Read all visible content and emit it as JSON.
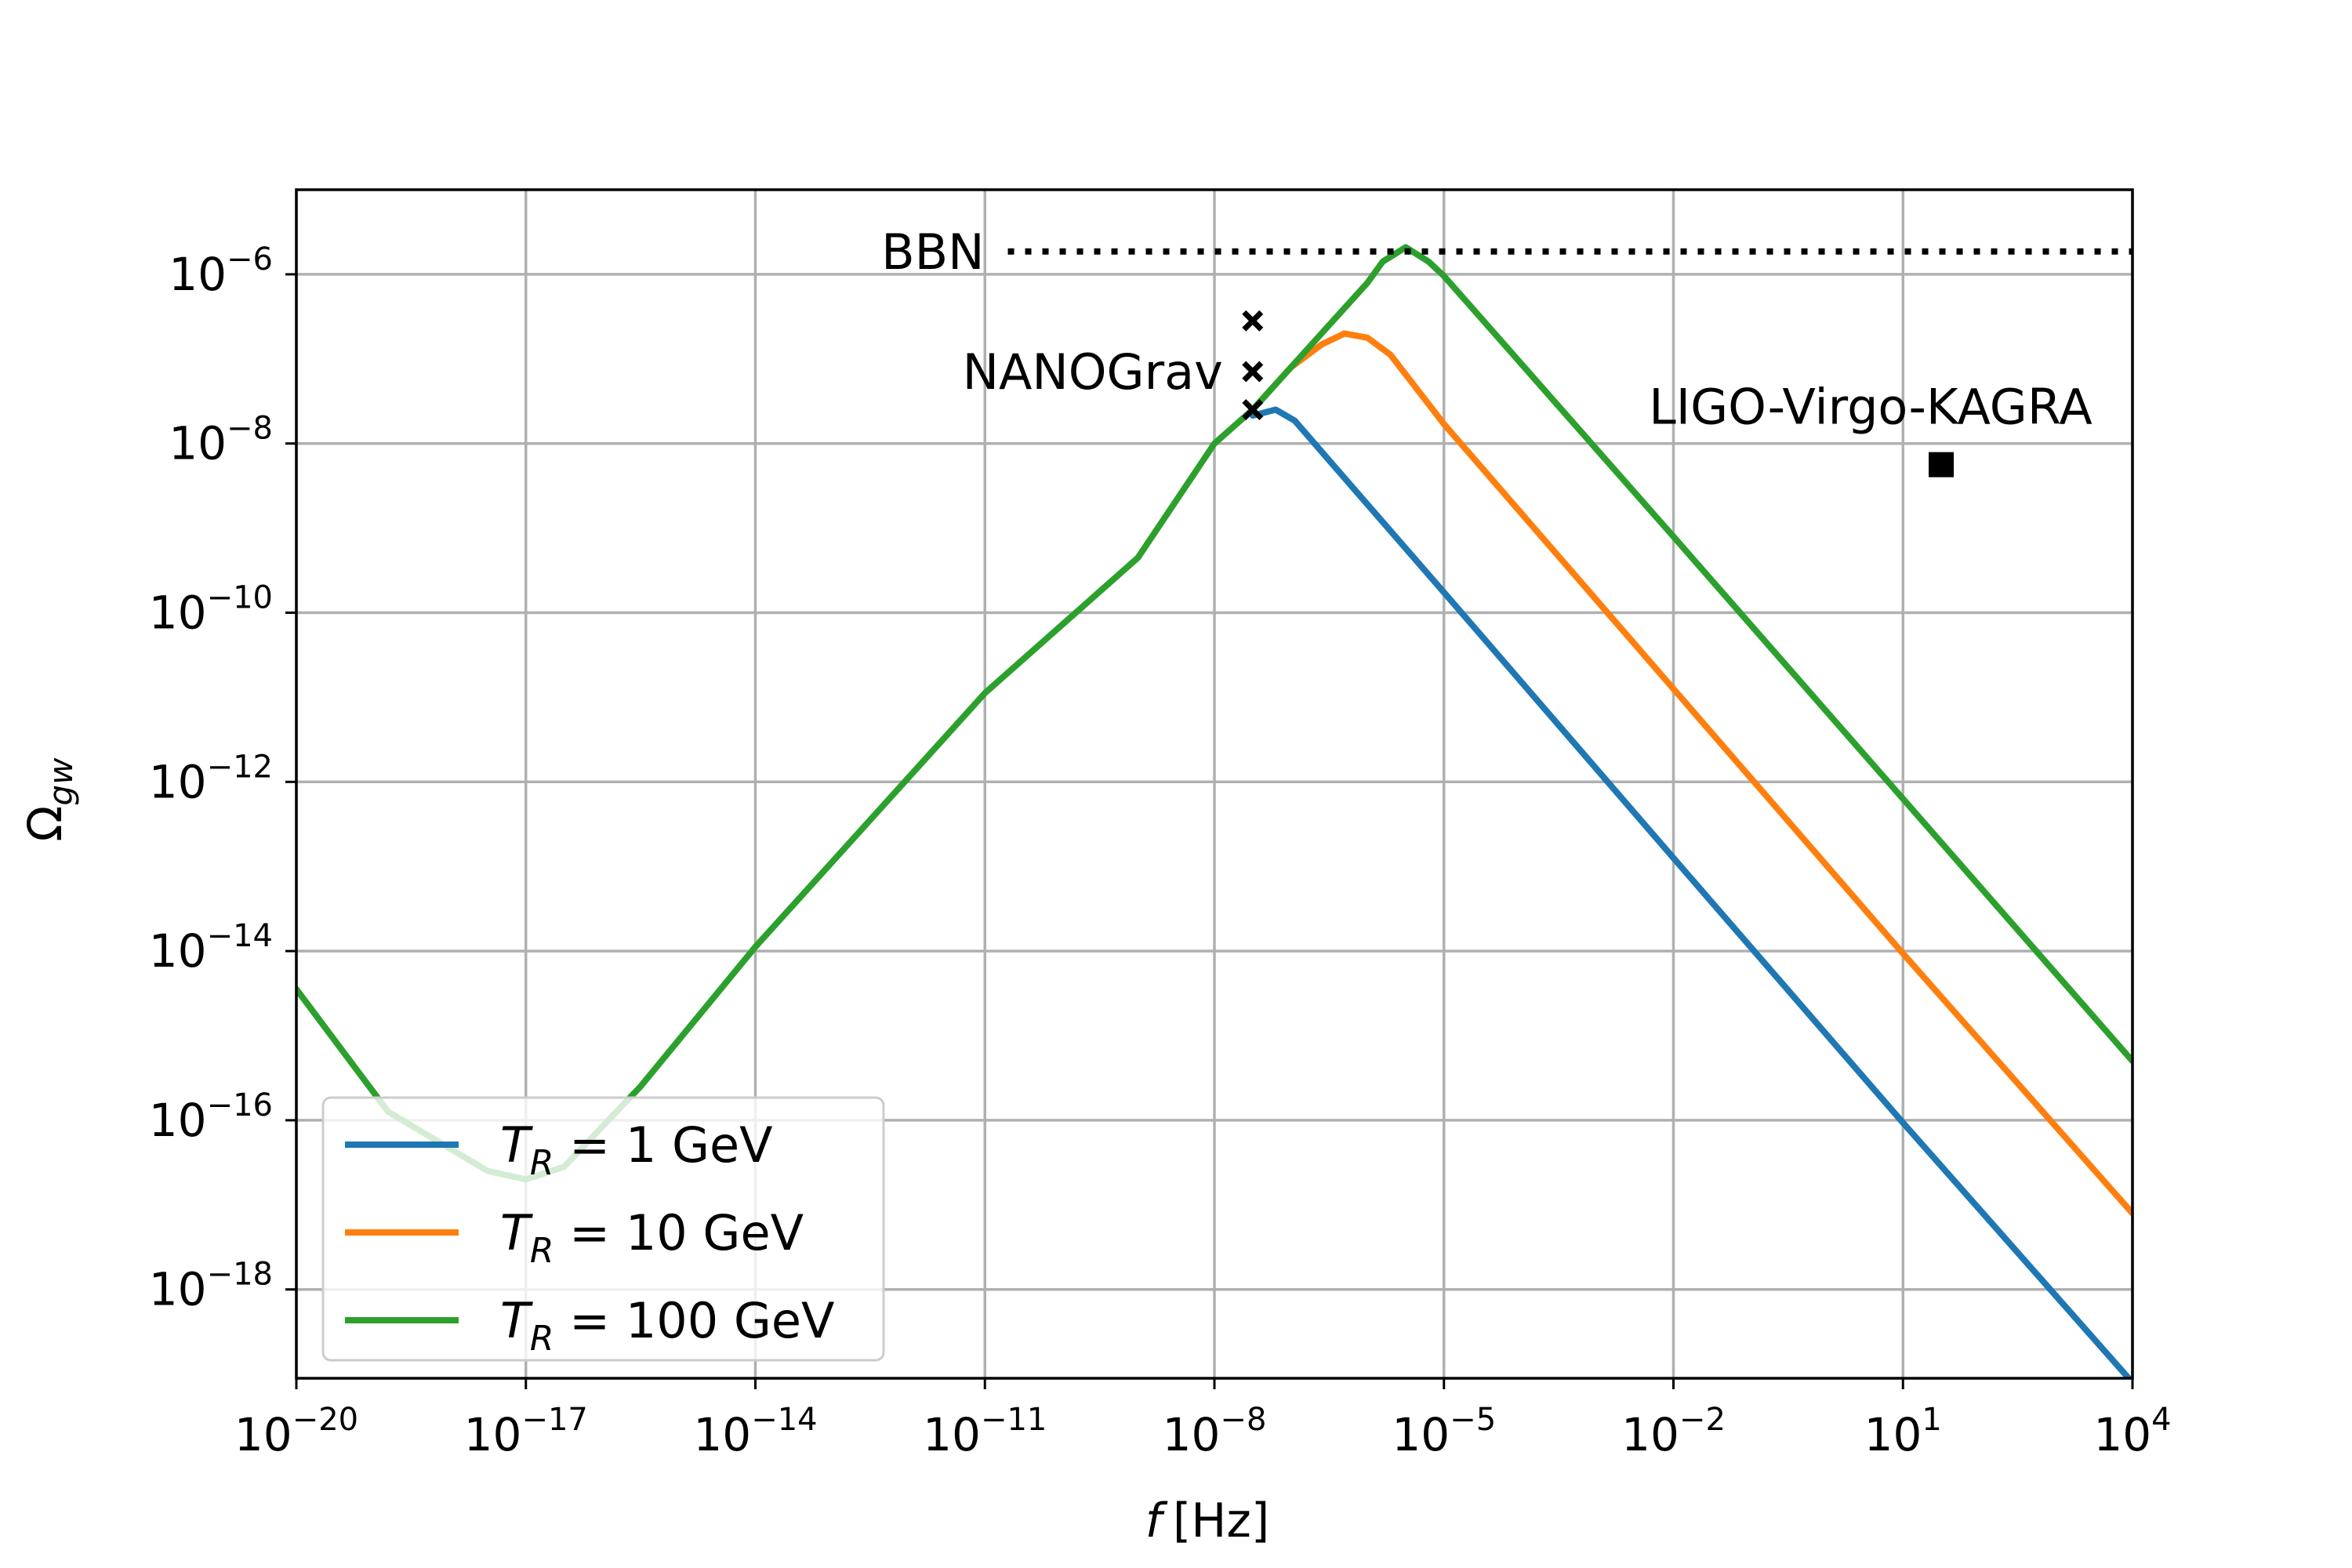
{
  "chart_data": {
    "type": "line",
    "title": "",
    "xlabel": {
      "var": "f",
      "unit": "[Hz]"
    },
    "ylabel": {
      "base": "Ω",
      "sub": "gw"
    },
    "xscale": "log",
    "yscale": "log",
    "xlim_log10": [
      -20,
      4
    ],
    "ylim_log10": [
      -19.05,
      -5.0
    ],
    "grid": true,
    "xticks": [
      {
        "base": "10",
        "exp": "−20",
        "log10": -20
      },
      {
        "base": "10",
        "exp": "−17",
        "log10": -17
      },
      {
        "base": "10",
        "exp": "−14",
        "log10": -14
      },
      {
        "base": "10",
        "exp": "−11",
        "log10": -11
      },
      {
        "base": "10",
        "exp": "−8",
        "log10": -8
      },
      {
        "base": "10",
        "exp": "−5",
        "log10": -5
      },
      {
        "base": "10",
        "exp": "−2",
        "log10": -2
      },
      {
        "base": "10",
        "exp": "1",
        "log10": 1
      },
      {
        "base": "10",
        "exp": "4",
        "log10": 4
      }
    ],
    "yticks": [
      {
        "base": "10",
        "exp": "−6",
        "log10": -6
      },
      {
        "base": "10",
        "exp": "−8",
        "log10": -8
      },
      {
        "base": "10",
        "exp": "−10",
        "log10": -10
      },
      {
        "base": "10",
        "exp": "−12",
        "log10": -12
      },
      {
        "base": "10",
        "exp": "−14",
        "log10": -14
      },
      {
        "base": "10",
        "exp": "−16",
        "log10": -16
      },
      {
        "base": "10",
        "exp": "−18",
        "log10": -18
      }
    ],
    "series": [
      {
        "name": "T_R = 1 GeV",
        "label": {
          "var": "T",
          "sub": "R",
          "rest": " = 1 GeV"
        },
        "color": "#1f77b4",
        "points_log10": [
          [
            -7.5,
            -7.67
          ],
          [
            -7.2,
            -7.6
          ],
          [
            -6.95,
            -7.73
          ],
          [
            -6.5,
            -8.2
          ],
          [
            -5,
            -9.76
          ],
          [
            -2,
            -12.9
          ],
          [
            1,
            -16.03
          ],
          [
            4,
            -19.1
          ]
        ]
      },
      {
        "name": "T_R = 10 GeV",
        "label": {
          "var": "T",
          "sub": "R",
          "rest": " = 10 GeV"
        },
        "color": "#ff7f0e",
        "points_log10": [
          [
            -7.5,
            -7.6
          ],
          [
            -7.0,
            -7.1
          ],
          [
            -6.6,
            -6.83
          ],
          [
            -6.3,
            -6.7
          ],
          [
            -6.0,
            -6.75
          ],
          [
            -5.7,
            -6.95
          ],
          [
            -5.4,
            -7.3
          ],
          [
            -5,
            -7.77
          ],
          [
            -2,
            -10.9
          ],
          [
            1,
            -14.03
          ],
          [
            4,
            -17.1
          ]
        ]
      },
      {
        "name": "T_R = 100 GeV",
        "label": {
          "var": "T",
          "sub": "R",
          "rest": " = 100 GeV"
        },
        "color": "#2ca02c",
        "points_log10": [
          [
            -20,
            -14.45
          ],
          [
            -18.8,
            -15.9
          ],
          [
            -17.5,
            -16.6
          ],
          [
            -17.0,
            -16.7
          ],
          [
            -16.5,
            -16.55
          ],
          [
            -15.5,
            -15.6
          ],
          [
            -14,
            -13.95
          ],
          [
            -11,
            -10.95
          ],
          [
            -9,
            -9.35
          ],
          [
            -8,
            -8.0
          ],
          [
            -7.5,
            -7.6
          ],
          [
            -6.5,
            -6.6
          ],
          [
            -6.0,
            -6.1
          ],
          [
            -5.8,
            -5.85
          ],
          [
            -5.5,
            -5.68
          ],
          [
            -5.2,
            -5.85
          ],
          [
            -5,
            -6.02
          ],
          [
            -2,
            -9.1
          ],
          [
            1,
            -12.2
          ],
          [
            4,
            -15.3
          ]
        ]
      }
    ],
    "annotations": [
      {
        "text": "BBN",
        "type": "hline",
        "style": "dotted",
        "y_log10": -5.73,
        "x_start_log10": -10.7
      },
      {
        "text": "NANOGrav",
        "type": "markers",
        "marker": "x",
        "x_log10": -7.5,
        "y_log10": [
          -6.55,
          -7.15,
          -7.6
        ]
      },
      {
        "text": "LIGO-Virgo-KAGRA",
        "type": "marker",
        "marker": "square",
        "x_log10": 1.5,
        "y_log10": -8.25
      }
    ],
    "legend": {
      "placement": "lower-left"
    }
  }
}
